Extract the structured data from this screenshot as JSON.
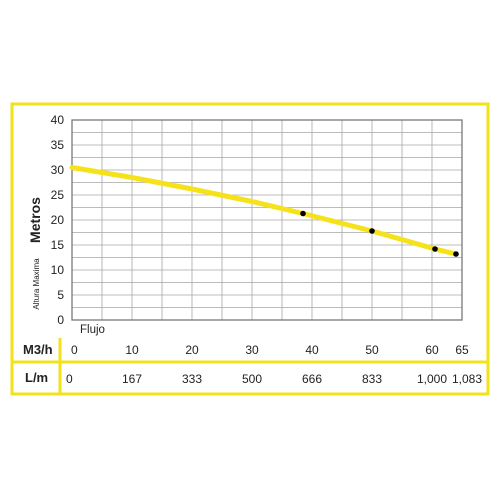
{
  "colors": {
    "frame": "#f2e21a",
    "curve": "#f5e21a",
    "grid": "#a6a6a6",
    "plot_border": "#6e6e6e",
    "text": "#222222",
    "marker": "#000000"
  },
  "chart_data": {
    "type": "line",
    "ylabel_main": "Metros",
    "ylabel_sub": "Altura Maxima",
    "x_caption": "Flujo",
    "x_axis_m3h": {
      "unit_label": "M3/h",
      "ticks": [
        "0",
        "10",
        "20",
        "30",
        "40",
        "50",
        "60",
        "65"
      ],
      "tick_values": [
        0,
        10,
        20,
        30,
        40,
        50,
        60,
        65
      ]
    },
    "x_axis_lm": {
      "unit_label": "L/m",
      "ticks": [
        "0",
        "167",
        "333",
        "500",
        "666",
        "833",
        "1,000",
        "1,083"
      ],
      "tick_values": [
        0,
        10,
        20,
        30,
        40,
        50,
        60,
        65
      ]
    },
    "y_ticks": [
      "0",
      "5",
      "10",
      "15",
      "20",
      "25",
      "30",
      "35",
      "40"
    ],
    "y_tick_values": [
      0,
      5,
      10,
      15,
      20,
      25,
      30,
      35,
      40
    ],
    "xlim": [
      0,
      65
    ],
    "ylim": [
      0,
      40
    ],
    "grid": true,
    "series": [
      {
        "x": [
          0,
          10,
          20,
          30,
          38.5,
          50,
          60.5,
          64
        ],
        "y": [
          30.5,
          28.5,
          26.2,
          23.7,
          21.3,
          17.8,
          14.2,
          13.2
        ],
        "markers_x": [
          38.5,
          50,
          60.5,
          64
        ],
        "markers_y": [
          21.3,
          17.8,
          14.2,
          13.2
        ]
      }
    ]
  }
}
